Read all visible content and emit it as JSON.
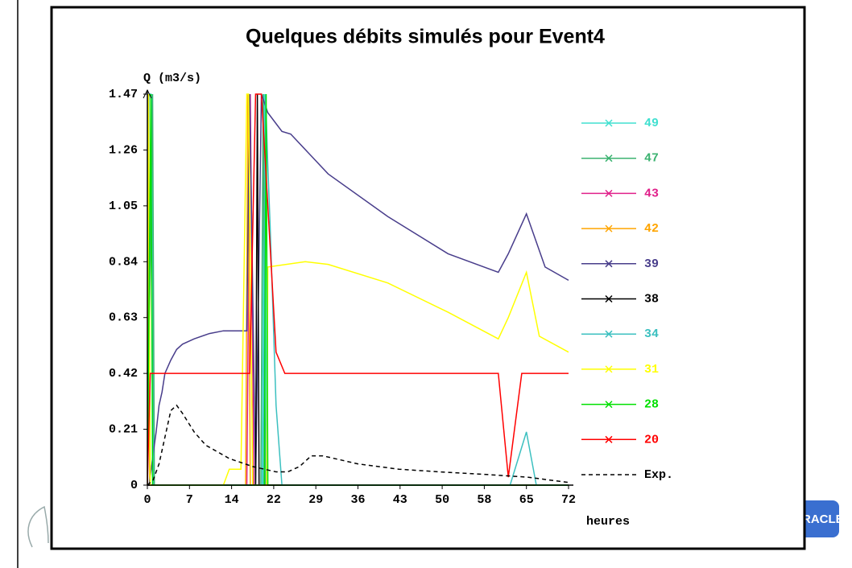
{
  "chart_data": {
    "type": "line",
    "title": "Quelques débits simulés pour Event4",
    "y_label": "Q  (m3/s)",
    "x_label": "heures",
    "xlim": [
      0,
      72
    ],
    "ylim": [
      0,
      1.47
    ],
    "xticks": [
      0,
      {
        "value": 7.2,
        "label": "7"
      },
      {
        "value": 14.4,
        "label": "14"
      },
      {
        "value": 21.6,
        "label": "22"
      },
      {
        "value": 28.8,
        "label": "29"
      },
      36,
      {
        "value": 43.2,
        "label": "43"
      },
      {
        "value": 50.4,
        "label": "50"
      },
      {
        "value": 57.6,
        "label": "58"
      },
      {
        "value": 64.8,
        "label": "65"
      },
      72
    ],
    "yticks": [
      0,
      0.21,
      0.42,
      0.63,
      0.84,
      1.05,
      1.26,
      1.47
    ],
    "series": [
      {
        "name": "49",
        "color": "#40e0d0",
        "x": [
          0,
          0.8,
          1.1,
          19.6,
          20,
          20.4,
          72
        ],
        "values": [
          0,
          1.47,
          0,
          0,
          1.47,
          0,
          0
        ]
      },
      {
        "name": "47",
        "color": "#3cb371",
        "x": [
          0,
          0.9,
          1.2,
          19.4,
          19.8,
          20.2,
          72
        ],
        "values": [
          0,
          1.47,
          0,
          0,
          1.47,
          0,
          0
        ]
      },
      {
        "name": "43",
        "color": "#e0208a",
        "x": [
          0,
          17,
          17.6,
          18.2,
          72
        ],
        "values": [
          0,
          0,
          1.47,
          0,
          0
        ]
      },
      {
        "name": "42",
        "color": "#ffa500",
        "x": [
          0,
          0.1,
          0.4,
          16.8,
          17.2,
          17.6,
          72
        ],
        "values": [
          0,
          1.47,
          0,
          0,
          1.47,
          0,
          0
        ]
      },
      {
        "name": "39",
        "color": "#483d8b",
        "x": [
          0,
          0.3,
          1,
          1.5,
          2,
          2.5,
          3,
          4,
          5,
          6,
          8,
          10.6,
          13,
          17,
          17.5,
          18.5,
          19.5,
          20.6,
          23,
          24.5,
          30.9,
          41.1,
          51.4,
          60,
          61.7,
          64.8,
          68,
          72
        ],
        "values": [
          0,
          0,
          0.12,
          0.2,
          0.3,
          0.35,
          0.42,
          0.47,
          0.51,
          0.53,
          0.55,
          0.57,
          0.58,
          0.58,
          1.47,
          0,
          1.47,
          1.4,
          1.33,
          1.32,
          1.17,
          1.01,
          0.87,
          0.8,
          0.87,
          1.02,
          0.82,
          0.77
        ]
      },
      {
        "name": "38",
        "color": "#000000",
        "x": [
          0,
          18.5,
          18.8,
          19.1,
          72
        ],
        "values": [
          0,
          0,
          1.47,
          0,
          0
        ]
      },
      {
        "name": "34",
        "color": "#3cc0c0",
        "x": [
          0,
          0.3,
          0.6,
          1,
          19.8,
          20.2,
          20.6,
          21,
          22,
          23,
          62,
          64.8,
          66.5,
          72
        ],
        "values": [
          0,
          1.47,
          1.47,
          0,
          0,
          1.47,
          1.2,
          0.97,
          0.3,
          0,
          0,
          0.2,
          0,
          0
        ]
      },
      {
        "name": "31",
        "color": "#ffff00",
        "x": [
          0,
          0.2,
          0.5,
          13,
          14,
          16,
          17,
          17.3,
          18,
          20.4,
          20.6,
          27,
          30.9,
          41.1,
          51.4,
          60,
          61.7,
          64.8,
          67,
          72
        ],
        "values": [
          0,
          1.47,
          0,
          0,
          0.06,
          0.06,
          1.47,
          1.47,
          0,
          0,
          0.82,
          0.84,
          0.83,
          0.76,
          0.65,
          0.55,
          0.63,
          0.8,
          0.56,
          0.5
        ]
      },
      {
        "name": "28",
        "color": "#00e000",
        "x": [
          0,
          0.6,
          0.9,
          20,
          20.3,
          20.6,
          72
        ],
        "values": [
          0,
          1.47,
          0,
          0,
          1.47,
          0,
          0
        ]
      },
      {
        "name": "20",
        "color": "#ff0000",
        "x": [
          0,
          0.5,
          17.5,
          18.5,
          19.5,
          20.6,
          22,
          23.5,
          60,
          61.7,
          64,
          72
        ],
        "values": [
          0,
          0.42,
          0.42,
          1.47,
          1.47,
          1.05,
          0.5,
          0.42,
          0.42,
          0.03,
          0.42,
          0.42
        ]
      },
      {
        "name": "Exp.",
        "color": "#000000",
        "line_style": "dashed",
        "x": [
          0,
          1,
          2,
          3,
          4,
          5,
          6,
          8,
          10,
          14,
          18,
          22,
          24,
          26,
          28,
          30,
          36,
          43,
          50,
          58,
          65,
          72
        ],
        "values": [
          0,
          0.02,
          0.08,
          0.18,
          0.28,
          0.3,
          0.27,
          0.2,
          0.15,
          0.1,
          0.07,
          0.05,
          0.05,
          0.07,
          0.11,
          0.11,
          0.08,
          0.06,
          0.05,
          0.04,
          0.03,
          0.01
        ]
      }
    ]
  },
  "logo_text": "ORACLE"
}
